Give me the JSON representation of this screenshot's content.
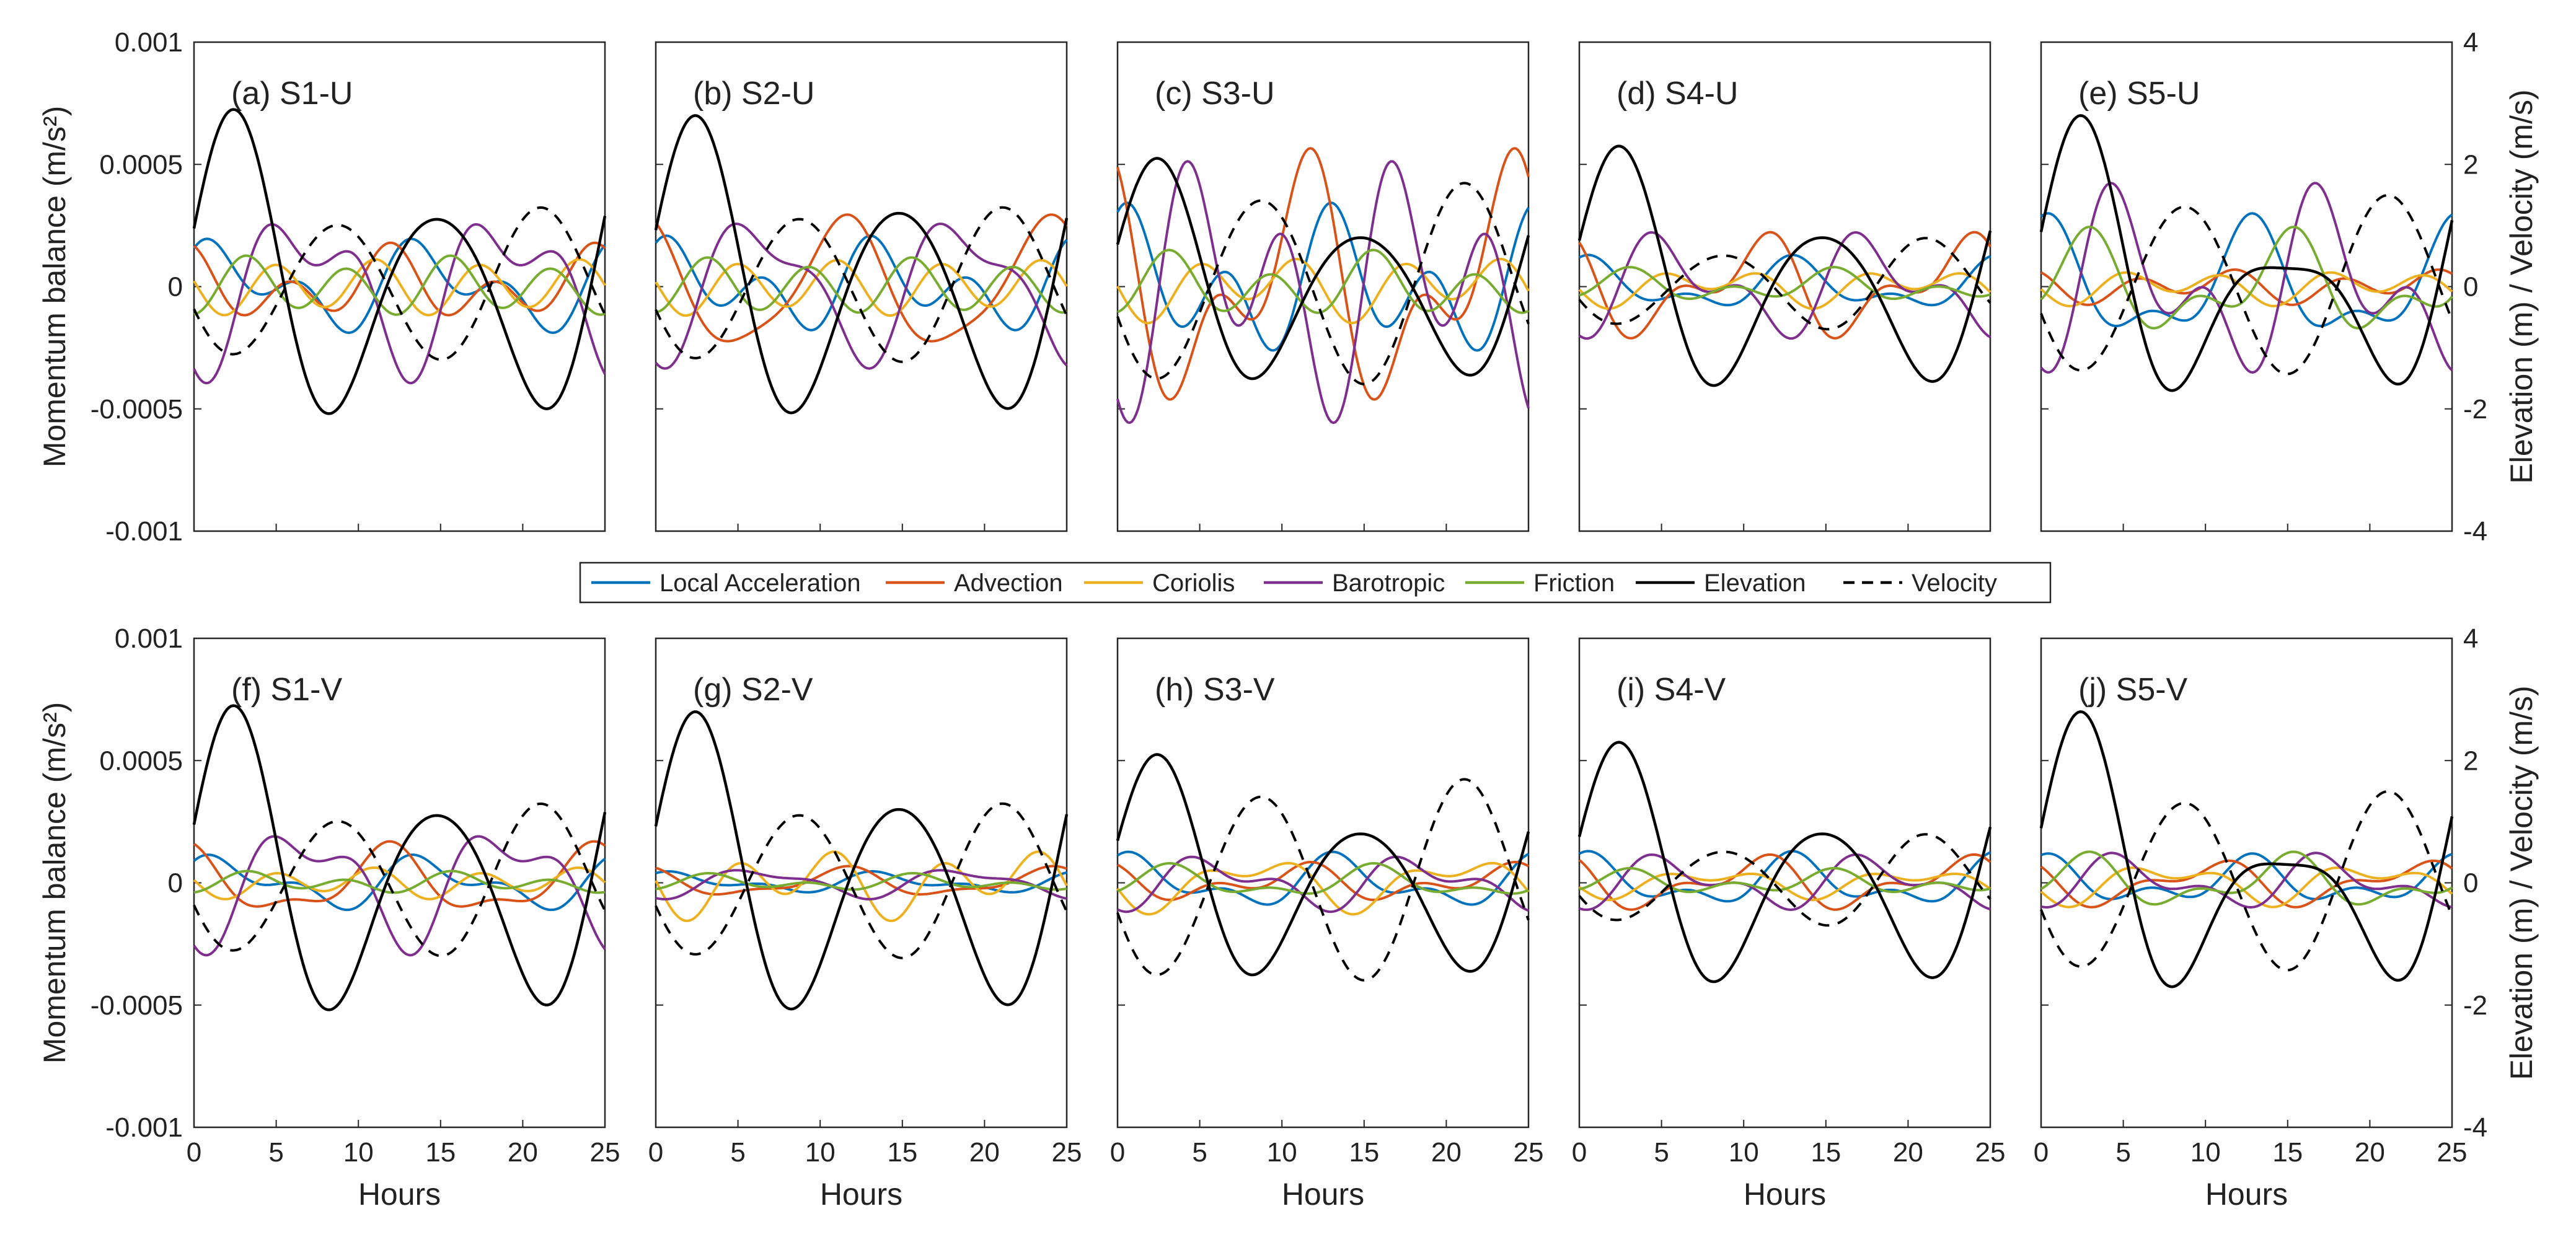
{
  "chart_data": {
    "type": "line",
    "x_label": "Hours",
    "x_range": [
      0,
      25
    ],
    "x_ticks": [
      "0",
      "5",
      "10",
      "15",
      "20",
      "25"
    ],
    "left_ylabel": "Momentum balance (m/s²)",
    "left_ylim": [
      -0.001,
      0.001
    ],
    "left_ticks": [
      "0.001",
      "0.0005",
      "0",
      "-0.0005",
      "-0.001"
    ],
    "right_ylabel": "Elevation (m) / Velocity (m/s)",
    "right_ylim": [
      -4,
      4
    ],
    "right_ticks": [
      "4",
      "2",
      "0",
      "-2",
      "-4"
    ],
    "legend": [
      {
        "name": "Local Acceleration",
        "color": "#0072BD",
        "style": "solid"
      },
      {
        "name": "Advection",
        "color": "#D95319",
        "style": "solid"
      },
      {
        "name": "Coriolis",
        "color": "#EDB120",
        "style": "solid"
      },
      {
        "name": "Barotropic",
        "color": "#7E2F8E",
        "style": "solid"
      },
      {
        "name": "Friction",
        "color": "#77AC30",
        "style": "solid"
      },
      {
        "name": "Elevation",
        "color": "#000000",
        "style": "solid"
      },
      {
        "name": "Velocity",
        "color": "#000000",
        "style": "dashed"
      }
    ],
    "panels": [
      {
        "label": "(a) S1-U",
        "elev": [
          1.1,
          2.9
        ],
        "vel": [
          1.0,
          1.3
        ],
        "terms": [
          [
            0.00012,
            0.0001
          ],
          [
            8e-05,
            0.0001
          ],
          [
            2e-05,
            0.0001
          ],
          [
            0.00025,
            0.00015
          ],
          [
            3e-05,
            0.0001
          ]
        ]
      },
      {
        "label": "(b) S2-U",
        "elev": [
          1.2,
          2.8
        ],
        "vel": [
          1.1,
          1.3
        ],
        "terms": [
          [
            0.0001,
            0.00012
          ],
          [
            0.00025,
            5e-05
          ],
          [
            2e-05,
            0.0001
          ],
          [
            0.00025,
            0.0001
          ],
          [
            2e-05,
            0.0001
          ]
        ]
      },
      {
        "label": "(c) S3-U",
        "elev": [
          0.8,
          2.1
        ],
        "vel": [
          1.4,
          1.7
        ],
        "terms": [
          [
            0.00015,
            0.0002
          ],
          [
            0.00035,
            0.00025
          ],
          [
            5e-05,
            0.0001
          ],
          [
            0.00025,
            0.00035
          ],
          [
            5e-05,
            0.0001
          ]
        ]
      },
      {
        "label": "(d) S4-U",
        "elev": [
          0.8,
          2.3
        ],
        "vel": [
          0.5,
          0.8
        ],
        "terms": [
          [
            8e-05,
            5e-05
          ],
          [
            0.00015,
            0.0001
          ],
          [
            4e-05,
            5e-05
          ],
          [
            0.00015,
            0.0001
          ],
          [
            4e-05,
            4e-05
          ]
        ]
      },
      {
        "label": "(e) S5-U",
        "elev": [
          0.3,
          2.8
        ],
        "vel": [
          1.3,
          1.5
        ],
        "terms": [
          [
            0.0002,
            0.0001
          ],
          [
            3e-05,
            5e-05
          ],
          [
            3e-05,
            5e-05
          ],
          [
            0.00025,
            0.0002
          ],
          [
            0.00015,
            0.0001
          ]
        ]
      },
      {
        "label": "(f) S1-V",
        "elev": [
          1.1,
          2.9
        ],
        "vel": [
          1.0,
          1.3
        ],
        "terms": [
          [
            8e-05,
            5e-05
          ],
          [
            0.00012,
            5e-05
          ],
          [
            2e-05,
            5e-05
          ],
          [
            0.0002,
            0.0001
          ],
          [
            2e-05,
            3e-05
          ]
        ]
      },
      {
        "label": "(g) S2-V",
        "elev": [
          1.2,
          2.8
        ],
        "vel": [
          1.1,
          1.3
        ],
        "terms": [
          [
            3e-05,
            2e-05
          ],
          [
            5e-05,
            2e-05
          ],
          [
            6e-05,
            0.0001
          ],
          [
            5e-05,
            2e-05
          ],
          [
            2e-05,
            2e-05
          ]
        ]
      },
      {
        "label": "(h) S3-V",
        "elev": [
          0.8,
          2.1
        ],
        "vel": [
          1.4,
          1.7
        ],
        "terms": [
          [
            8e-05,
            5e-05
          ],
          [
            5e-05,
            4e-05
          ],
          [
            8e-05,
            5e-05
          ],
          [
            8e-05,
            5e-05
          ],
          [
            5e-05,
            3e-05
          ]
        ]
      },
      {
        "label": "(i) S4-V",
        "elev": [
          0.8,
          2.3
        ],
        "vel": [
          0.5,
          0.8
        ],
        "terms": [
          [
            8e-05,
            5e-05
          ],
          [
            8e-05,
            5e-05
          ],
          [
            4e-05,
            3e-05
          ],
          [
            8e-05,
            5e-05
          ],
          [
            3e-05,
            3e-05
          ]
        ]
      },
      {
        "label": "(j) S5-V",
        "elev": [
          0.3,
          2.8
        ],
        "vel": [
          1.3,
          1.5
        ],
        "terms": [
          [
            7e-05,
            5e-05
          ],
          [
            7e-05,
            4e-05
          ],
          [
            6e-05,
            4e-05
          ],
          [
            8e-05,
            5e-05
          ],
          [
            8e-05,
            5e-05
          ]
        ]
      }
    ]
  }
}
